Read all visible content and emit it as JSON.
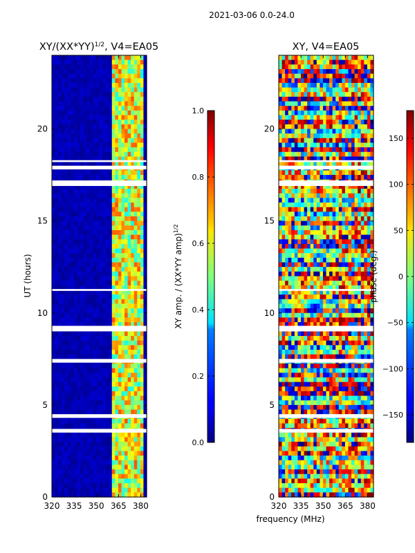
{
  "suptitle": "2021-03-06 0.0-24.0",
  "chart_data": [
    {
      "type": "heatmap",
      "title": "XY/(XX*YY)^1/2, V4=EA05",
      "title_main": "XY/(XX*YY)",
      "title_sup": "1/2",
      "title_rest": ", V4=EA05",
      "xlabel": "",
      "ylabel": "UT (hours)",
      "xlim": [
        320,
        384
      ],
      "ylim": [
        0,
        24
      ],
      "xticks": [
        "320",
        "335",
        "350",
        "365",
        "380"
      ],
      "xtick_values": [
        320,
        335,
        350,
        365,
        380
      ],
      "yticks": [
        "0",
        "5",
        "10",
        "15",
        "20"
      ],
      "ytick_values": [
        0,
        5,
        10,
        15,
        20
      ],
      "colormap": "jet",
      "value_range": [
        0.0,
        1.0
      ],
      "data_description": "normalized XY amplitude, near 0 below 361 MHz, 0.4-0.8 between 361 and 381 MHz"
    },
    {
      "type": "heatmap",
      "title": "XY, V4=EA05",
      "xlabel": "frequency (MHz)",
      "ylabel": "",
      "xlim": [
        320,
        384
      ],
      "ylim": [
        0,
        24
      ],
      "xticks": [
        "320",
        "335",
        "350",
        "365",
        "380"
      ],
      "xtick_values": [
        320,
        335,
        350,
        365,
        380
      ],
      "yticks": [
        "0",
        "5",
        "10",
        "15",
        "20"
      ],
      "ytick_values": [
        0,
        5,
        10,
        15,
        20
      ],
      "colormap": "jet",
      "value_range": [
        -180,
        180
      ],
      "data_description": "XY phase in degrees spanning -180 to 180"
    }
  ],
  "colorbars": [
    {
      "label": "XY amp. / (XX*YY amp)^1/2",
      "label_main": "XY amp. / (XX*YY amp)",
      "label_sup": "1/2",
      "range": [
        0.0,
        1.0
      ],
      "ticks": [
        "0.0",
        "0.2",
        "0.4",
        "0.6",
        "0.8",
        "1.0"
      ],
      "tick_values": [
        0.0,
        0.2,
        0.4,
        0.6,
        0.8,
        1.0
      ]
    },
    {
      "label": "phase (deg.)",
      "range": [
        -180,
        180
      ],
      "ticks": [
        "−150",
        "−100",
        "−50",
        "0",
        "50",
        "100",
        "150"
      ],
      "tick_values": [
        -150,
        -100,
        -50,
        0,
        50,
        100,
        150
      ]
    }
  ],
  "flagged_time_ranges_hours": [
    [
      3.5,
      3.7
    ],
    [
      4.3,
      4.5
    ],
    [
      7.3,
      7.5
    ],
    [
      9.0,
      9.3
    ],
    [
      11.2,
      11.3
    ],
    [
      16.9,
      17.2
    ],
    [
      17.8,
      18.0
    ],
    [
      18.2,
      18.3
    ]
  ],
  "colors": {
    "jet_low": "#00007f",
    "jet_mid": "#7fff7f",
    "jet_high": "#7f0000",
    "flag": "#ffffff"
  }
}
